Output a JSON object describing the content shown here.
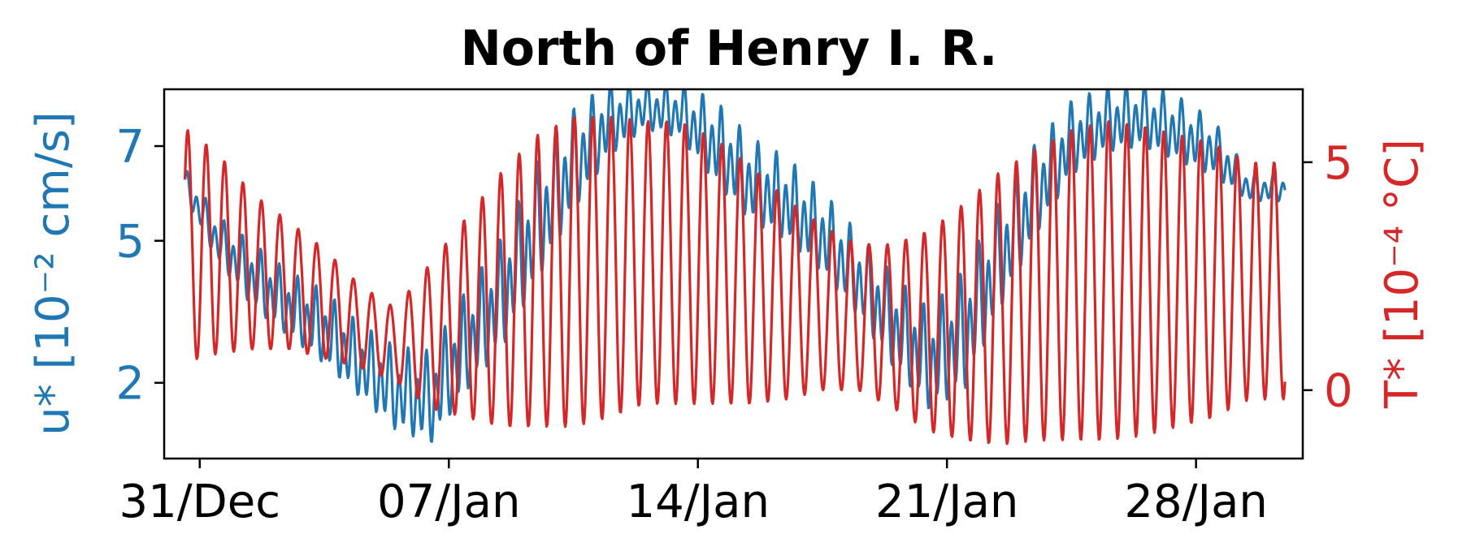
{
  "chart_data": {
    "type": "line",
    "title": "North of Henry I. R.",
    "x_axis": {
      "type": "date",
      "range": [
        "2022-12-30",
        "2023-01-31"
      ],
      "ticks": [
        {
          "date": "2022-12-31",
          "label": "31/Dec"
        },
        {
          "date": "2023-01-07",
          "label": "07/Jan"
        },
        {
          "date": "2023-01-14",
          "label": "14/Jan"
        },
        {
          "date": "2023-01-21",
          "label": "21/Jan"
        },
        {
          "date": "2023-01-28",
          "label": "28/Jan"
        }
      ]
    },
    "y_left": {
      "label": "u* [10⁻² cm/s]",
      "color": "#1f77b4",
      "range": [
        0.4,
        8.2
      ],
      "ticks": [
        2,
        5,
        7
      ],
      "tick_labels": [
        "2",
        "5",
        "7"
      ]
    },
    "y_right": {
      "label": "T* [10⁻⁴ °C]",
      "color": "#d62728",
      "range": [
        -1.5,
        6.6
      ],
      "ticks": [
        0,
        5
      ],
      "tick_labels": [
        "0",
        "5"
      ]
    },
    "series": [
      {
        "axis": "left",
        "color": "#1f77b4",
        "envelope": {
          "dates": [
            "2022-12-30T12:00",
            "2022-12-31T12:00",
            "2023-01-01T12:00",
            "2023-01-02T12:00",
            "2023-01-03T12:00",
            "2023-01-04T12:00",
            "2023-01-05T12:00",
            "2023-01-06T12:00",
            "2023-01-07T12:00",
            "2023-01-08T12:00",
            "2023-01-09T12:00",
            "2023-01-10T12:00",
            "2023-01-11T12:00",
            "2023-01-12T12:00",
            "2023-01-13T12:00",
            "2023-01-14T12:00",
            "2023-01-15T12:00",
            "2023-01-16T12:00",
            "2023-01-17T12:00",
            "2023-01-18T12:00",
            "2023-01-19T12:00",
            "2023-01-20T12:00",
            "2023-01-21T12:00",
            "2023-01-22T12:00",
            "2023-01-23T12:00",
            "2023-01-24T12:00",
            "2023-01-25T12:00",
            "2023-01-26T12:00",
            "2023-01-27T12:00",
            "2023-01-28T12:00",
            "2023-01-29T12:00"
          ],
          "mean": [
            6.3,
            5.0,
            4.2,
            3.6,
            3.1,
            2.4,
            1.8,
            1.6,
            2.8,
            3.8,
            5.3,
            6.6,
            7.5,
            7.8,
            7.7,
            7.0,
            6.2,
            5.8,
            5.1,
            4.2,
            3.2,
            2.4,
            3.0,
            4.6,
            6.0,
            7.1,
            7.5,
            7.6,
            7.3,
            6.9,
            6.1
          ],
          "amplitude": [
            0.3,
            0.5,
            0.7,
            0.7,
            0.8,
            0.8,
            0.9,
            1.0,
            1.1,
            1.2,
            1.3,
            1.1,
            0.8,
            0.5,
            0.6,
            0.9,
            0.9,
            0.9,
            0.9,
            0.9,
            1.0,
            1.1,
            1.3,
            1.2,
            1.0,
            0.8,
            0.7,
            0.7,
            0.7,
            0.6,
            0.3
          ]
        }
      },
      {
        "axis": "right",
        "color": "#d62728",
        "envelope": {
          "dates": [
            "2022-12-30T12:00",
            "2022-12-31T12:00",
            "2023-01-01T12:00",
            "2023-01-02T12:00",
            "2023-01-03T12:00",
            "2023-01-04T12:00",
            "2023-01-05T12:00",
            "2023-01-06T12:00",
            "2023-01-07T12:00",
            "2023-01-08T12:00",
            "2023-01-09T12:00",
            "2023-01-10T12:00",
            "2023-01-11T12:00",
            "2023-01-12T12:00",
            "2023-01-13T12:00",
            "2023-01-14T12:00",
            "2023-01-15T12:00",
            "2023-01-16T12:00",
            "2023-01-17T12:00",
            "2023-01-18T12:00",
            "2023-01-19T12:00",
            "2023-01-20T12:00",
            "2023-01-21T12:00",
            "2023-01-22T12:00",
            "2023-01-23T12:00",
            "2023-01-24T12:00",
            "2023-01-25T12:00",
            "2023-01-26T12:00",
            "2023-01-27T12:00",
            "2023-01-28T12:00",
            "2023-01-29T12:00"
          ],
          "mean": [
            3.2,
            3.0,
            2.6,
            2.3,
            1.9,
            1.4,
            1.0,
            1.2,
            1.6,
            2.0,
            2.4,
            2.6,
            2.7,
            2.8,
            2.8,
            2.6,
            2.3,
            2.0,
            1.8,
            1.6,
            1.4,
            1.3,
            1.5,
            1.8,
            2.1,
            2.3,
            2.4,
            2.4,
            2.4,
            2.4,
            2.4
          ],
          "amplitude": [
            2.6,
            2.2,
            1.7,
            1.4,
            1.2,
            0.9,
            0.8,
            1.6,
            2.2,
            2.8,
            3.2,
            3.4,
            3.3,
            3.1,
            3.1,
            2.9,
            2.6,
            2.2,
            1.8,
            1.6,
            1.8,
            2.2,
            2.6,
            3.0,
            3.2,
            3.4,
            3.5,
            3.4,
            3.2,
            3.0,
            2.6
          ]
        },
        "period_hours": 12.42
      }
    ],
    "grid": false,
    "legend": "none"
  }
}
